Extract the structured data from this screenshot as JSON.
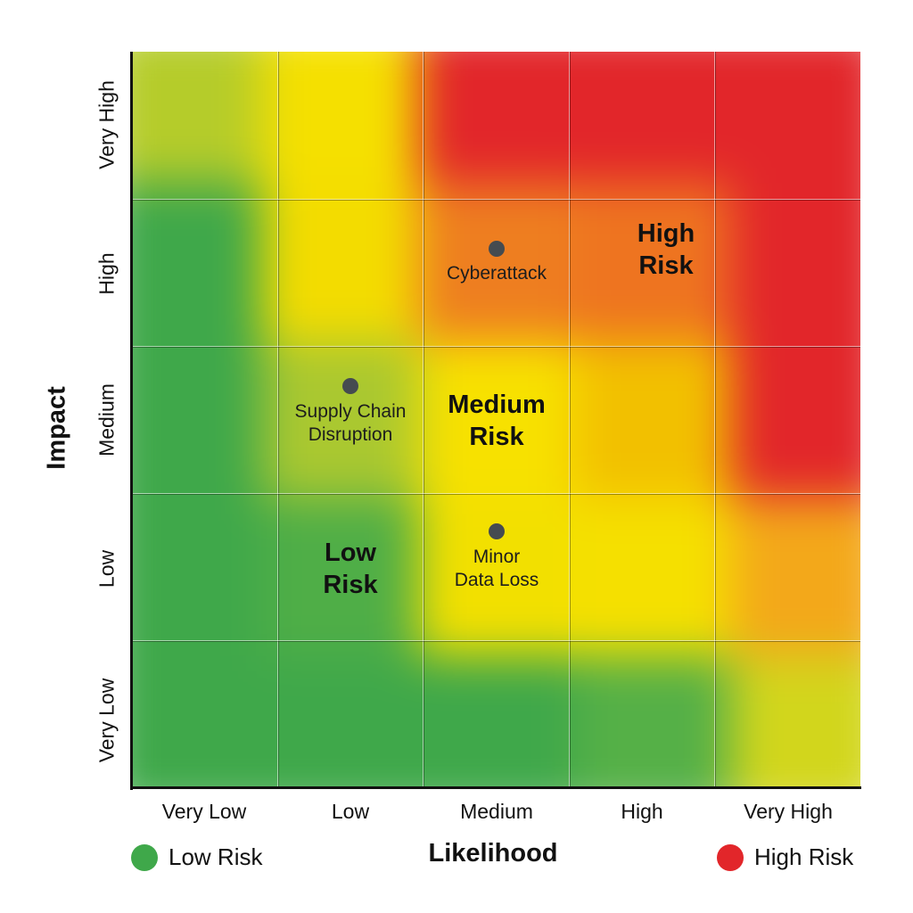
{
  "chart_data": {
    "type": "heatmap",
    "title": "",
    "xlabel": "Likelihood",
    "ylabel": "Impact",
    "x_categories": [
      "Very Low",
      "Low",
      "Medium",
      "High",
      "Very High"
    ],
    "y_categories": [
      "Very Low",
      "Low",
      "Medium",
      "High",
      "Very High"
    ],
    "grid": true,
    "cell_colors_top_to_bottom": [
      [
        "#b5cc2a",
        "#f5e000",
        "#e2262a",
        "#e2262a",
        "#e2262a"
      ],
      [
        "#3fa84a",
        "#f3dc00",
        "#ee7e20",
        "#ee7420",
        "#e2262a"
      ],
      [
        "#3fa84a",
        "#aac830",
        "#f7e100",
        "#f2c000",
        "#e2262a"
      ],
      [
        "#3fa84a",
        "#4fae47",
        "#f2e000",
        "#f5e000",
        "#f3a81a"
      ],
      [
        "#3fa84a",
        "#3fa84a",
        "#3fa84a",
        "#55b047",
        "#d2d61c"
      ]
    ],
    "zones": [
      {
        "label": "Low Risk",
        "x": "Low",
        "y": "Low"
      },
      {
        "label": "Medium Risk",
        "x": "Medium",
        "y": "Medium"
      },
      {
        "label": "High Risk",
        "x": "High",
        "y": "High"
      }
    ],
    "points": [
      {
        "label": "Cyberattack",
        "likelihood": "Medium",
        "impact": "High"
      },
      {
        "label": "Supply Chain Disruption",
        "likelihood": "Low",
        "impact": "Medium"
      },
      {
        "label": "Minor Data Loss",
        "likelihood": "Medium",
        "impact": "Low"
      }
    ],
    "legend": [
      {
        "label": "Low Risk",
        "color": "#3fa84a"
      },
      {
        "label": "High Risk",
        "color": "#e2262a"
      }
    ],
    "legend_position": "bottom"
  },
  "axes": {
    "x_title": "Likelihood",
    "y_title": "Impact",
    "x_ticks": [
      "Very Low",
      "Low",
      "Medium",
      "High",
      "Very High"
    ],
    "y_ticks": [
      "Very Low",
      "Low",
      "Medium",
      "High",
      "Very High"
    ]
  },
  "zones": {
    "low": "Low\nRisk",
    "medium": "Medium\nRisk",
    "high": "High\nRisk"
  },
  "points": {
    "cyberattack": "Cyberattack",
    "supply_chain": "Supply Chain\nDisruption",
    "minor_data_loss": "Minor\nData Loss"
  },
  "legend": {
    "low": {
      "label": "Low Risk",
      "color": "#3fa84a"
    },
    "high": {
      "label": "High Risk",
      "color": "#e2262a"
    }
  },
  "colors": {
    "marker": "#454b50"
  }
}
